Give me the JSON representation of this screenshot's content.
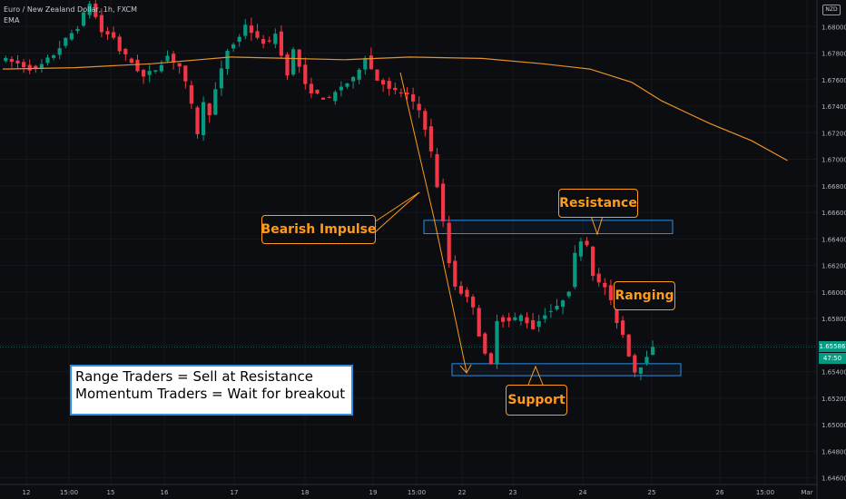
{
  "header": {
    "symbol_line": "Euro / New Zealand Dollar, 1h, FXCM",
    "indicator": "EMA"
  },
  "currency_badge": "NZD",
  "price_labels": {
    "current": "1.65586",
    "countdown": "47:50",
    "current_color": "#089981"
  },
  "annotations": {
    "bearish_impulse": "Bearish Impulse",
    "resistance": "Resistance",
    "ranging": "Ranging",
    "support": "Support",
    "strategy_line1": "Range Traders = Sell at Resistance",
    "strategy_line2": "Momentum Traders = Wait for breakout",
    "accent_color": "#ff9b1a",
    "zone_color": "#2d8ee8"
  },
  "chart_data": {
    "type": "candlestick",
    "y_axis_ticks": [
      "1.68000",
      "1.67800",
      "1.67600",
      "1.67400",
      "1.67200",
      "1.67000",
      "1.66800",
      "1.66600",
      "1.66400",
      "1.66200",
      "1.66000",
      "1.65800",
      "1.65600",
      "1.65400",
      "1.65200",
      "1.65000",
      "1.64800",
      "1.64600"
    ],
    "x_axis_ticks": [
      "12",
      "15:00",
      "15",
      "16",
      "17",
      "18",
      "19",
      "15:00",
      "22",
      "23",
      "24",
      "25",
      "26",
      "15:00",
      "Mar"
    ],
    "ylim": [
      1.6455,
      1.682
    ],
    "colors": {
      "up": "#089981",
      "down": "#f23645",
      "ema": "#e8912a"
    },
    "resistance_zone": [
      1.6644,
      1.6654
    ],
    "support_zone": [
      1.6537,
      1.6546
    ],
    "current_price": 1.65586,
    "ema": [
      {
        "t": 0,
        "p": 1.6768
      },
      {
        "t": 12,
        "p": 1.6769
      },
      {
        "t": 25,
        "p": 1.6772
      },
      {
        "t": 38,
        "p": 1.6777
      },
      {
        "t": 48,
        "p": 1.6776
      },
      {
        "t": 57,
        "p": 1.6775
      },
      {
        "t": 68,
        "p": 1.6777
      },
      {
        "t": 80,
        "p": 1.6776
      },
      {
        "t": 90,
        "p": 1.6772
      },
      {
        "t": 98,
        "p": 1.6768
      },
      {
        "t": 105,
        "p": 1.6758
      },
      {
        "t": 110,
        "p": 1.6744
      },
      {
        "t": 118,
        "p": 1.6727
      },
      {
        "t": 125,
        "p": 1.6714
      },
      {
        "t": 131,
        "p": 1.6699
      }
    ]
  }
}
